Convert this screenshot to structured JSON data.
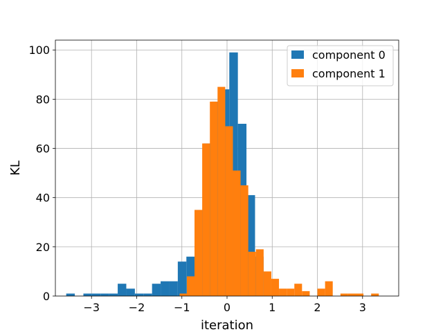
{
  "chart_data": {
    "type": "bar",
    "title": "",
    "xlabel": "iteration",
    "ylabel": "KL",
    "xlim": [
      -3.8,
      3.8
    ],
    "ylim": [
      0,
      104
    ],
    "x_ticks": [
      -3,
      -2,
      -1,
      0,
      1,
      2,
      3
    ],
    "x_tick_labels": [
      "−3",
      "−2",
      "−1",
      "0",
      "1",
      "2",
      "3"
    ],
    "y_ticks": [
      0,
      20,
      40,
      60,
      80,
      100
    ],
    "y_tick_labels": [
      "0",
      "20",
      "40",
      "60",
      "80",
      "100"
    ],
    "grid": true,
    "legend": {
      "position": "top-right",
      "entries": [
        "component 0",
        "component 1"
      ]
    },
    "series": [
      {
        "name": "component 0",
        "color": "#1f77b4",
        "bins": [
          {
            "x0": -3.56,
            "x1": -3.37,
            "value": 1
          },
          {
            "x0": -3.18,
            "x1": -2.99,
            "value": 1
          },
          {
            "x0": -2.99,
            "x1": -2.8,
            "value": 1
          },
          {
            "x0": -2.8,
            "x1": -2.61,
            "value": 1
          },
          {
            "x0": -2.61,
            "x1": -2.42,
            "value": 1
          },
          {
            "x0": -2.42,
            "x1": -2.23,
            "value": 5
          },
          {
            "x0": -2.23,
            "x1": -2.04,
            "value": 3
          },
          {
            "x0": -2.04,
            "x1": -1.85,
            "value": 1
          },
          {
            "x0": -1.85,
            "x1": -1.66,
            "value": 1
          },
          {
            "x0": -1.66,
            "x1": -1.47,
            "value": 5
          },
          {
            "x0": -1.47,
            "x1": -1.28,
            "value": 6
          },
          {
            "x0": -1.28,
            "x1": -1.09,
            "value": 6
          },
          {
            "x0": -1.09,
            "x1": -0.9,
            "value": 14
          },
          {
            "x0": -0.9,
            "x1": -0.71,
            "value": 16
          },
          {
            "x0": -0.71,
            "x1": -0.52,
            "value": 35
          },
          {
            "x0": -0.52,
            "x1": -0.33,
            "value": 62
          },
          {
            "x0": -0.33,
            "x1": -0.14,
            "value": 79
          },
          {
            "x0": -0.14,
            "x1": 0.05,
            "value": 84
          },
          {
            "x0": 0.05,
            "x1": 0.24,
            "value": 99
          },
          {
            "x0": 0.24,
            "x1": 0.43,
            "value": 70
          },
          {
            "x0": 0.43,
            "x1": 0.62,
            "value": 41
          },
          {
            "x0": 0.62,
            "x1": 0.81,
            "value": 16
          }
        ]
      },
      {
        "name": "component 1",
        "color": "#ff7f0e",
        "bins": [
          {
            "x0": -1.05,
            "x1": -0.89,
            "value": 1
          },
          {
            "x0": -0.89,
            "x1": -0.72,
            "value": 8
          },
          {
            "x0": -0.72,
            "x1": -0.55,
            "value": 35
          },
          {
            "x0": -0.55,
            "x1": -0.38,
            "value": 62
          },
          {
            "x0": -0.38,
            "x1": -0.21,
            "value": 79
          },
          {
            "x0": -0.21,
            "x1": -0.04,
            "value": 85
          },
          {
            "x0": -0.04,
            "x1": 0.13,
            "value": 69
          },
          {
            "x0": 0.13,
            "x1": 0.3,
            "value": 51
          },
          {
            "x0": 0.3,
            "x1": 0.47,
            "value": 45
          },
          {
            "x0": 0.47,
            "x1": 0.64,
            "value": 18
          },
          {
            "x0": 0.64,
            "x1": 0.81,
            "value": 19
          },
          {
            "x0": 0.81,
            "x1": 0.98,
            "value": 10
          },
          {
            "x0": 0.98,
            "x1": 1.15,
            "value": 7
          },
          {
            "x0": 1.15,
            "x1": 1.32,
            "value": 3
          },
          {
            "x0": 1.32,
            "x1": 1.49,
            "value": 3
          },
          {
            "x0": 1.49,
            "x1": 1.66,
            "value": 5
          },
          {
            "x0": 1.66,
            "x1": 1.83,
            "value": 2
          },
          {
            "x0": 2.0,
            "x1": 2.17,
            "value": 3
          },
          {
            "x0": 2.17,
            "x1": 2.34,
            "value": 6
          },
          {
            "x0": 2.51,
            "x1": 2.68,
            "value": 1
          },
          {
            "x0": 2.68,
            "x1": 2.85,
            "value": 1
          },
          {
            "x0": 2.85,
            "x1": 3.02,
            "value": 1
          },
          {
            "x0": 3.19,
            "x1": 3.36,
            "value": 1
          }
        ]
      }
    ]
  }
}
